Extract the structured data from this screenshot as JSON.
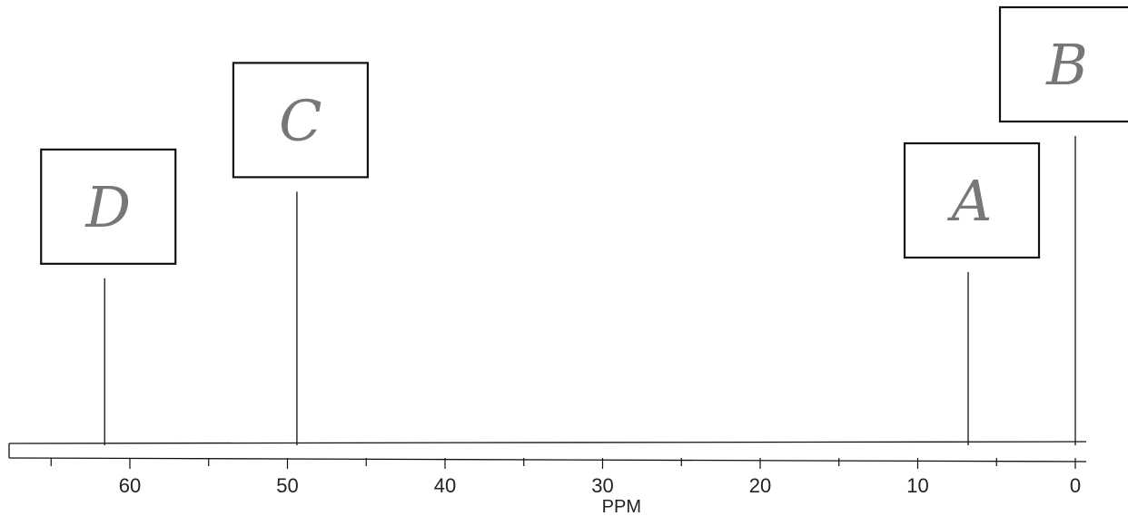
{
  "chart_data": {
    "type": "stick",
    "xlabel": "PPM",
    "xlim": [
      68.5,
      -0.5
    ],
    "x_ticks": [
      60,
      50,
      40,
      30,
      20,
      10,
      0
    ],
    "x_tick_labels": [
      "60",
      "50",
      "40",
      "30",
      "20",
      "10",
      "0"
    ],
    "y_range": [
      0,
      1
    ],
    "peaks": [
      {
        "label": "D",
        "ppm": 61.6,
        "intensity": 0.54
      },
      {
        "label": "C",
        "ppm": 49.4,
        "intensity": 0.82
      },
      {
        "label": "A",
        "ppm": 6.8,
        "intensity": 0.56
      },
      {
        "label": "B",
        "ppm": 0.0,
        "intensity": 1.0
      }
    ]
  }
}
